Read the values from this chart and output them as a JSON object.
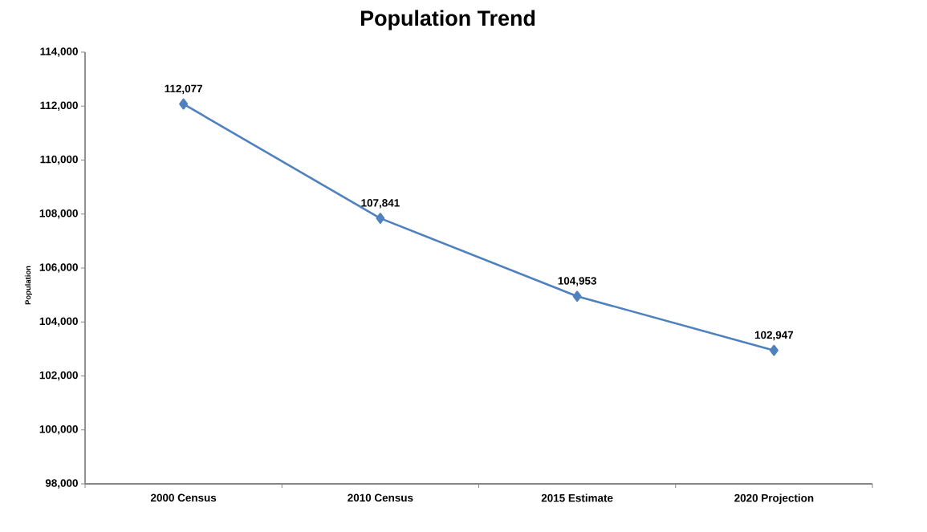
{
  "chart_data": {
    "type": "line",
    "title": "Population Trend",
    "ylabel": "Population",
    "categories": [
      "2000 Census",
      "2010 Census",
      "2015 Estimate",
      "2020 Projection"
    ],
    "values": [
      112077,
      107841,
      104953,
      102947
    ],
    "value_labels": [
      "112,077",
      "107,841",
      "104,953",
      "102,947"
    ],
    "color": "#4f81bd",
    "marker": "diamond",
    "line_style": "solid",
    "ylim": [
      98000,
      114000
    ],
    "yticks": [
      {
        "value": 98000,
        "label": "98,000"
      },
      {
        "value": 100000,
        "label": "100,000"
      },
      {
        "value": 102000,
        "label": "102,000"
      },
      {
        "value": 104000,
        "label": "104,000"
      },
      {
        "value": 106000,
        "label": "106,000"
      },
      {
        "value": 108000,
        "label": "108,000"
      },
      {
        "value": 110000,
        "label": "110,000"
      },
      {
        "value": 112000,
        "label": "112,000"
      },
      {
        "value": 114000,
        "label": "114,000"
      }
    ]
  }
}
